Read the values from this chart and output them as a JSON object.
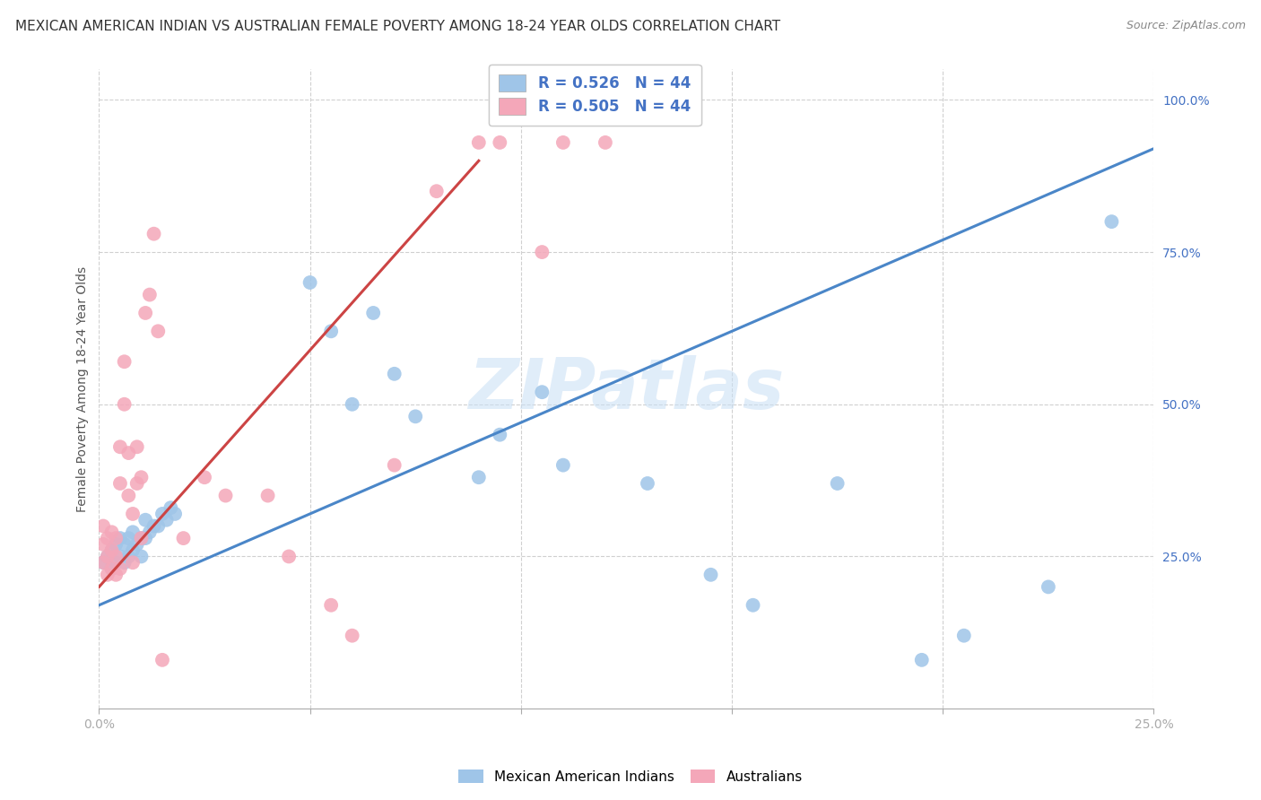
{
  "title": "MEXICAN AMERICAN INDIAN VS AUSTRALIAN FEMALE POVERTY AMONG 18-24 YEAR OLDS CORRELATION CHART",
  "source": "Source: ZipAtlas.com",
  "ylabel": "Female Poverty Among 18-24 Year Olds",
  "xlim": [
    0.0,
    0.25
  ],
  "ylim": [
    0.0,
    1.05
  ],
  "watermark": "ZIPatlas",
  "legend_bottom": [
    "Mexican American Indians",
    "Australians"
  ],
  "blue_scatter_x": [
    0.001,
    0.002,
    0.003,
    0.003,
    0.004,
    0.004,
    0.005,
    0.005,
    0.006,
    0.006,
    0.007,
    0.007,
    0.008,
    0.008,
    0.009,
    0.01,
    0.01,
    0.011,
    0.011,
    0.012,
    0.013,
    0.014,
    0.015,
    0.016,
    0.017,
    0.018,
    0.05,
    0.055,
    0.06,
    0.065,
    0.07,
    0.075,
    0.09,
    0.095,
    0.105,
    0.11,
    0.13,
    0.145,
    0.155,
    0.175,
    0.195,
    0.205,
    0.225,
    0.24
  ],
  "blue_scatter_y": [
    0.24,
    0.25,
    0.23,
    0.26,
    0.24,
    0.27,
    0.25,
    0.28,
    0.24,
    0.27,
    0.25,
    0.28,
    0.26,
    0.29,
    0.27,
    0.25,
    0.28,
    0.28,
    0.31,
    0.29,
    0.3,
    0.3,
    0.32,
    0.31,
    0.33,
    0.32,
    0.7,
    0.62,
    0.5,
    0.65,
    0.55,
    0.48,
    0.38,
    0.45,
    0.52,
    0.4,
    0.37,
    0.22,
    0.17,
    0.37,
    0.08,
    0.12,
    0.2,
    0.8
  ],
  "pink_scatter_x": [
    0.001,
    0.001,
    0.001,
    0.002,
    0.002,
    0.002,
    0.003,
    0.003,
    0.003,
    0.004,
    0.004,
    0.004,
    0.005,
    0.005,
    0.005,
    0.006,
    0.006,
    0.007,
    0.007,
    0.008,
    0.008,
    0.009,
    0.009,
    0.01,
    0.01,
    0.011,
    0.012,
    0.013,
    0.014,
    0.015,
    0.02,
    0.025,
    0.03,
    0.04,
    0.045,
    0.055,
    0.06,
    0.07,
    0.08,
    0.09,
    0.095,
    0.105,
    0.11,
    0.12
  ],
  "pink_scatter_y": [
    0.24,
    0.27,
    0.3,
    0.22,
    0.25,
    0.28,
    0.23,
    0.26,
    0.29,
    0.22,
    0.25,
    0.28,
    0.23,
    0.37,
    0.43,
    0.5,
    0.57,
    0.35,
    0.42,
    0.24,
    0.32,
    0.37,
    0.43,
    0.28,
    0.38,
    0.65,
    0.68,
    0.78,
    0.62,
    0.08,
    0.28,
    0.38,
    0.35,
    0.35,
    0.25,
    0.17,
    0.12,
    0.4,
    0.85,
    0.93,
    0.93,
    0.75,
    0.93,
    0.93
  ],
  "blue_line_x": [
    0.0,
    0.25
  ],
  "blue_line_y": [
    0.17,
    0.92
  ],
  "pink_line_x": [
    0.0,
    0.09
  ],
  "pink_line_y": [
    0.2,
    0.9
  ],
  "blue_color": "#4a86c8",
  "blue_scatter_color": "#9fc5e8",
  "pink_color": "#cc4444",
  "pink_scatter_color": "#f4a7b9",
  "r_blue": "0.526",
  "n_blue": "44",
  "r_pink": "0.505",
  "n_pink": "44"
}
